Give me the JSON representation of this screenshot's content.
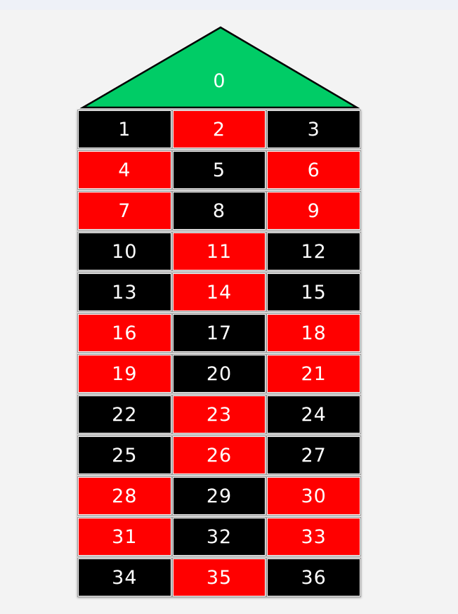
{
  "colors": {
    "red": "#ff0000",
    "black": "#000000",
    "green": "#00cc66",
    "text": "#ffffff"
  },
  "zero": {
    "label": "0",
    "color": "green"
  },
  "numbers": [
    {
      "label": "1",
      "color": "black"
    },
    {
      "label": "2",
      "color": "red"
    },
    {
      "label": "3",
      "color": "black"
    },
    {
      "label": "4",
      "color": "red"
    },
    {
      "label": "5",
      "color": "black"
    },
    {
      "label": "6",
      "color": "red"
    },
    {
      "label": "7",
      "color": "red"
    },
    {
      "label": "8",
      "color": "black"
    },
    {
      "label": "9",
      "color": "red"
    },
    {
      "label": "10",
      "color": "black"
    },
    {
      "label": "11",
      "color": "red"
    },
    {
      "label": "12",
      "color": "black"
    },
    {
      "label": "13",
      "color": "black"
    },
    {
      "label": "14",
      "color": "red"
    },
    {
      "label": "15",
      "color": "black"
    },
    {
      "label": "16",
      "color": "red"
    },
    {
      "label": "17",
      "color": "black"
    },
    {
      "label": "18",
      "color": "red"
    },
    {
      "label": "19",
      "color": "red"
    },
    {
      "label": "20",
      "color": "black"
    },
    {
      "label": "21",
      "color": "red"
    },
    {
      "label": "22",
      "color": "black"
    },
    {
      "label": "23",
      "color": "red"
    },
    {
      "label": "24",
      "color": "black"
    },
    {
      "label": "25",
      "color": "black"
    },
    {
      "label": "26",
      "color": "red"
    },
    {
      "label": "27",
      "color": "black"
    },
    {
      "label": "28",
      "color": "red"
    },
    {
      "label": "29",
      "color": "black"
    },
    {
      "label": "30",
      "color": "red"
    },
    {
      "label": "31",
      "color": "red"
    },
    {
      "label": "32",
      "color": "black"
    },
    {
      "label": "33",
      "color": "red"
    },
    {
      "label": "34",
      "color": "black"
    },
    {
      "label": "35",
      "color": "red"
    },
    {
      "label": "36",
      "color": "black"
    }
  ]
}
